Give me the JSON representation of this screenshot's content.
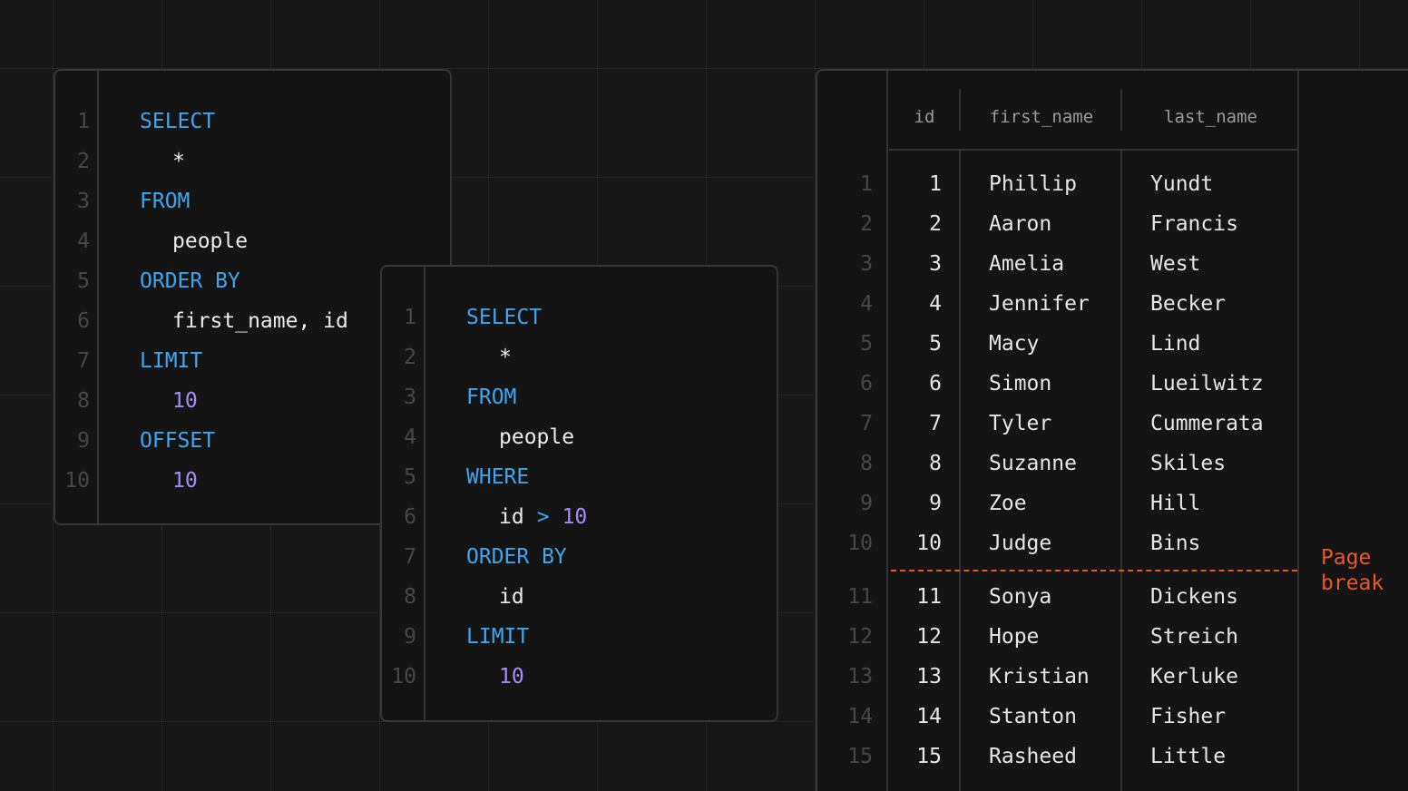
{
  "query_limit_offset": {
    "line_numbers": [
      1,
      2,
      3,
      4,
      5,
      6,
      7,
      8,
      9,
      10
    ],
    "lines": [
      [
        {
          "text": "SELECT",
          "kind": "keyword"
        }
      ],
      [
        {
          "text": "*",
          "kind": "identifier"
        }
      ],
      [
        {
          "text": "FROM",
          "kind": "keyword"
        }
      ],
      [
        {
          "text": "people",
          "kind": "identifier"
        }
      ],
      [
        {
          "text": "ORDER BY",
          "kind": "keyword"
        }
      ],
      [
        {
          "text": "first_name, id",
          "kind": "identifier"
        }
      ],
      [
        {
          "text": "LIMIT",
          "kind": "keyword"
        }
      ],
      [
        {
          "text": "10",
          "kind": "number"
        }
      ],
      [
        {
          "text": "OFFSET",
          "kind": "keyword"
        }
      ],
      [
        {
          "text": "10",
          "kind": "number"
        }
      ]
    ]
  },
  "query_keyset": {
    "line_numbers": [
      1,
      2,
      3,
      4,
      5,
      6,
      7,
      8,
      9,
      10
    ],
    "lines": [
      [
        {
          "text": "SELECT",
          "kind": "keyword"
        }
      ],
      [
        {
          "text": "*",
          "kind": "identifier"
        }
      ],
      [
        {
          "text": "FROM",
          "kind": "keyword"
        }
      ],
      [
        {
          "text": "people",
          "kind": "identifier"
        }
      ],
      [
        {
          "text": "WHERE",
          "kind": "keyword"
        }
      ],
      [
        {
          "text": "id",
          "kind": "identifier"
        },
        {
          "text": ">",
          "kind": "operator"
        },
        {
          "text": "10",
          "kind": "number"
        }
      ],
      [
        {
          "text": "ORDER BY",
          "kind": "keyword"
        }
      ],
      [
        {
          "text": "id",
          "kind": "identifier"
        }
      ],
      [
        {
          "text": "LIMIT",
          "kind": "keyword"
        }
      ],
      [
        {
          "text": "10",
          "kind": "number"
        }
      ]
    ]
  },
  "table": {
    "header": [
      "id",
      "first_name",
      "last_name"
    ],
    "row_numbers": [
      1,
      2,
      3,
      4,
      5,
      6,
      7,
      8,
      9,
      10,
      11,
      12,
      13,
      14,
      15
    ],
    "rows": [
      [
        1,
        "Phillip",
        "Yundt"
      ],
      [
        2,
        "Aaron",
        "Francis"
      ],
      [
        3,
        "Amelia",
        "West"
      ],
      [
        4,
        "Jennifer",
        "Becker"
      ],
      [
        5,
        "Macy",
        "Lind"
      ],
      [
        6,
        "Simon",
        "Lueilwitz"
      ],
      [
        7,
        "Tyler",
        "Cummerata"
      ],
      [
        8,
        "Suzanne",
        "Skiles"
      ],
      [
        9,
        "Zoe",
        "Hill"
      ],
      [
        10,
        "Judge",
        "Bins"
      ],
      [
        11,
        "Sonya",
        "Dickens"
      ],
      [
        12,
        "Hope",
        "Streich"
      ],
      [
        13,
        "Kristian",
        "Kerluke"
      ],
      [
        14,
        "Stanton",
        "Fisher"
      ],
      [
        15,
        "Rasheed",
        "Little"
      ]
    ],
    "page_break_after_row": 10,
    "page_break_label": "Page break"
  }
}
